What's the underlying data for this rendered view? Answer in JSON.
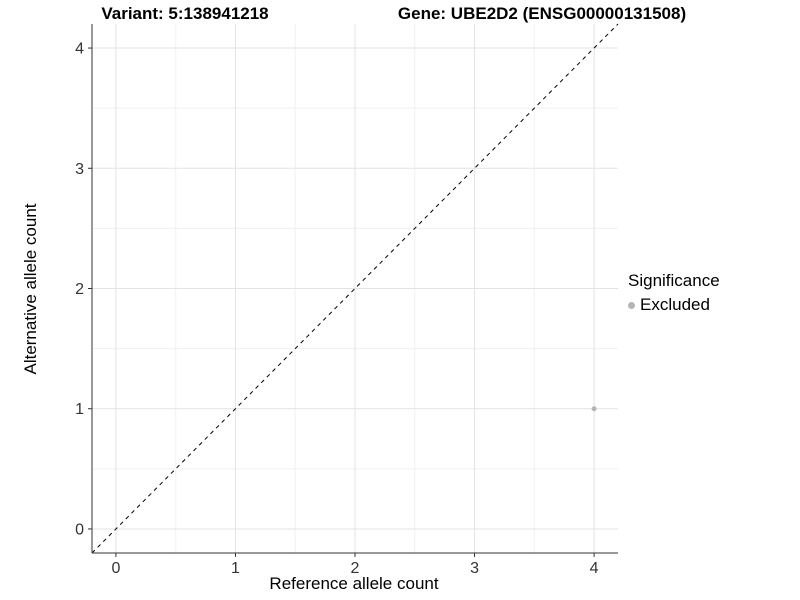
{
  "titles": {
    "variant": "Variant: 5:138941218",
    "gene": "Gene: UBE2D2 (ENSG00000131508)"
  },
  "axes": {
    "x_title": "Reference allele count",
    "y_title": "Alternative allele count"
  },
  "legend": {
    "title": "Significance",
    "items": [
      {
        "label": "Excluded",
        "color": "#b5b5b5",
        "marker": "circle"
      }
    ]
  },
  "chart_data": {
    "type": "scatter",
    "title": "Variant: 5:138941218   Gene: UBE2D2 (ENSG00000131508)",
    "xlabel": "Reference allele count",
    "ylabel": "Alternative allele count",
    "xlim": [
      -0.2,
      4.2
    ],
    "ylim": [
      -0.2,
      4.2
    ],
    "xticks": [
      0,
      1,
      2,
      3,
      4
    ],
    "yticks": [
      0,
      1,
      2,
      3,
      4
    ],
    "grid": "major and minor (minor at 0.5 intervals)",
    "legend_position": "right",
    "legend_title": "Significance",
    "series": [
      {
        "name": "Excluded",
        "color": "#b5b5b5",
        "points": [
          {
            "x": 4,
            "y": 1
          }
        ]
      }
    ],
    "reference_line": {
      "kind": "identity y=x",
      "style": "dashed",
      "color": "#000000"
    },
    "styles": {
      "grid_major": "#e3e3e3",
      "grid_minor": "#f1f1f1",
      "axis_line": "#333333",
      "tick_label": "#333333",
      "point_radius": 2.5
    }
  }
}
